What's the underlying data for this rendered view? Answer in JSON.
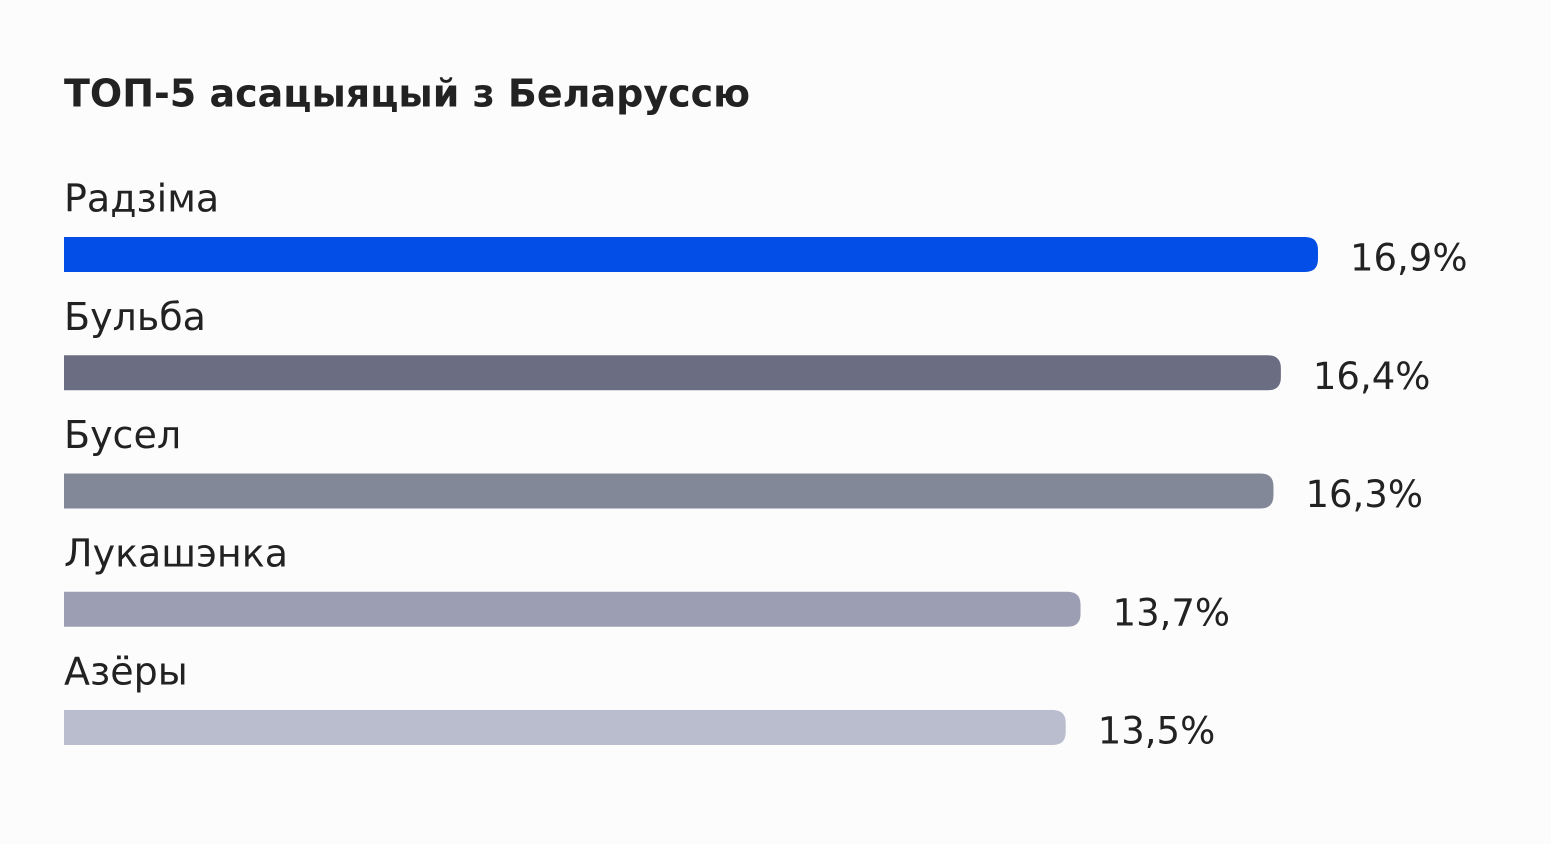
{
  "chart_data": {
    "type": "hbar",
    "title": "ТОП-5 асацыяцый з Беларуссю",
    "categories": [
      "Радзіма",
      "Бульба",
      "Бусел",
      "Лукашэнка",
      "Азёры"
    ],
    "values": [
      16.9,
      16.4,
      16.3,
      13.7,
      13.5
    ],
    "value_labels": [
      "16,9%",
      "16,4%",
      "16,3%",
      "13,7%",
      "13,5%"
    ],
    "colors": [
      "#034ee6",
      "#6b6d82",
      "#838899",
      "#9c9fb4",
      "#babdce"
    ]
  }
}
